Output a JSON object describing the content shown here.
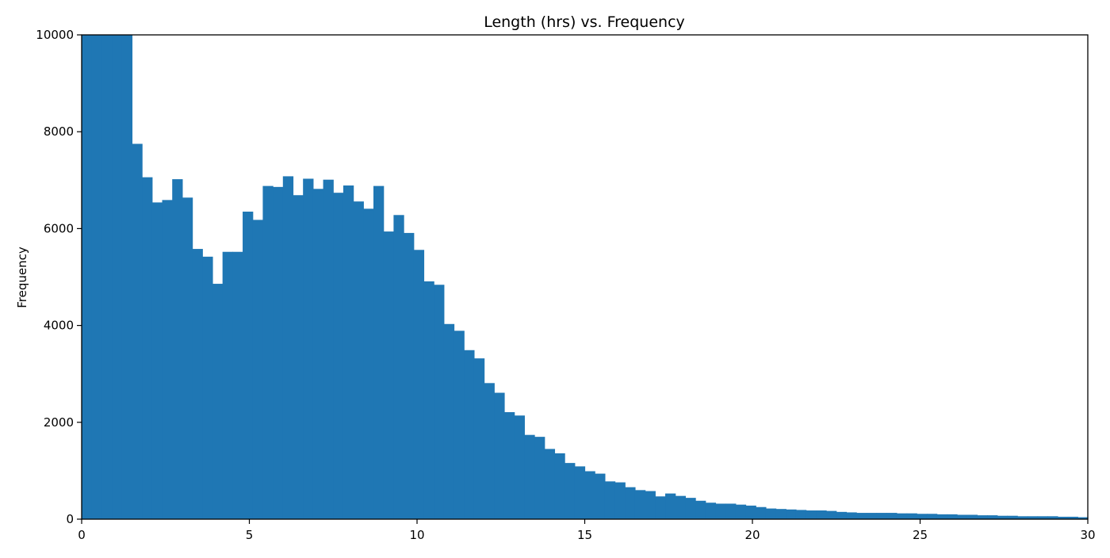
{
  "chart_data": {
    "type": "bar",
    "title": "Length (hrs) vs. Frequency",
    "xlabel": "",
    "ylabel": "Frequency",
    "xlim": [
      0,
      30
    ],
    "ylim": [
      0,
      10000
    ],
    "x_ticks": [
      0,
      5,
      10,
      15,
      20,
      25,
      30
    ],
    "y_ticks": [
      0,
      2000,
      4000,
      6000,
      8000,
      10000
    ],
    "grid": false,
    "legend": "none",
    "bar_color": "#1f77b4",
    "bin_width": 0.3,
    "bin_starts": [
      0.0,
      0.3,
      0.6,
      0.9,
      1.2,
      1.5,
      1.8,
      2.1,
      2.4,
      2.7,
      3.0,
      3.3,
      3.6,
      3.9,
      4.2,
      4.5,
      4.8,
      5.1,
      5.4,
      5.7,
      6.0,
      6.3,
      6.6,
      6.9,
      7.2,
      7.5,
      7.8,
      8.1,
      8.4,
      8.7,
      9.0,
      9.3,
      9.6,
      9.9,
      10.2,
      10.5,
      10.8,
      11.1,
      11.4,
      11.7,
      12.0,
      12.3,
      12.6,
      12.9,
      13.2,
      13.5,
      13.8,
      14.1,
      14.4,
      14.7,
      15.0,
      15.3,
      15.6,
      15.9,
      16.2,
      16.5,
      16.8,
      17.1,
      17.4,
      17.7,
      18.0,
      18.3,
      18.6,
      18.9,
      19.2,
      19.5,
      19.8,
      20.1,
      20.4,
      20.7,
      21.0,
      21.3,
      21.6,
      21.9,
      22.2,
      22.5,
      22.8,
      23.1,
      23.4,
      23.7,
      24.0,
      24.3,
      24.6,
      24.9,
      25.2,
      25.5,
      25.8,
      26.1,
      26.4,
      26.7,
      27.0,
      27.3,
      27.6,
      27.9,
      28.2,
      28.5,
      28.8,
      29.1,
      29.4,
      29.7
    ],
    "values": [
      10000,
      10000,
      10000,
      10000,
      10000,
      7750,
      7060,
      6540,
      6590,
      7020,
      6640,
      5580,
      5420,
      4860,
      5520,
      5520,
      6350,
      6180,
      6880,
      6860,
      7080,
      6690,
      7030,
      6820,
      7010,
      6740,
      6890,
      6560,
      6410,
      6880,
      5940,
      6280,
      5910,
      5560,
      4910,
      4840,
      4030,
      3890,
      3490,
      3320,
      2810,
      2610,
      2210,
      2140,
      1740,
      1700,
      1450,
      1360,
      1160,
      1090,
      990,
      940,
      780,
      760,
      660,
      600,
      580,
      470,
      530,
      480,
      440,
      380,
      340,
      320,
      320,
      300,
      280,
      250,
      220,
      210,
      200,
      190,
      180,
      180,
      170,
      150,
      140,
      130,
      130,
      130,
      130,
      120,
      120,
      110,
      110,
      100,
      100,
      90,
      90,
      80,
      80,
      70,
      70,
      60,
      60,
      60,
      60,
      50,
      50,
      40
    ]
  }
}
